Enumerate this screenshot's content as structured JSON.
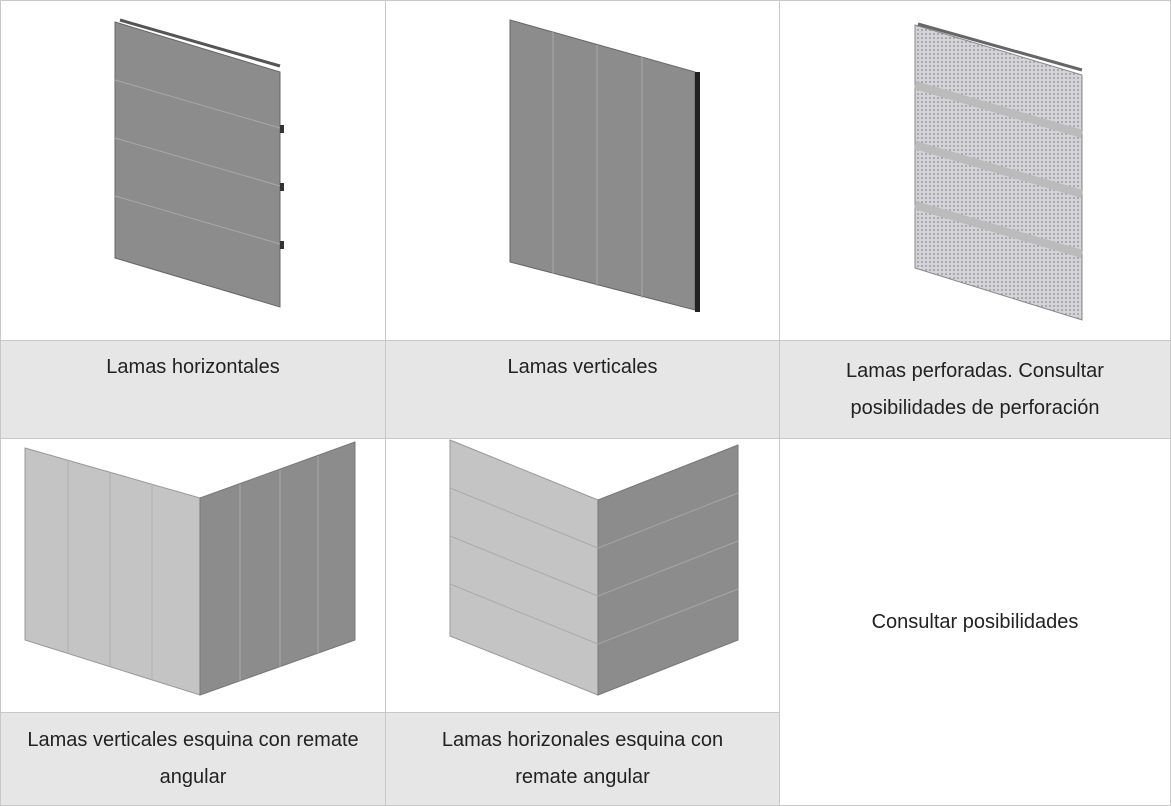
{
  "table": {
    "row1_captions": [
      "Lamas horizontales",
      "Lamas verticales",
      "Lamas perforadas. Consultar posibilidades de perforación"
    ],
    "row2_captions": [
      "Lamas verticales esquina con remate angular",
      "Lamas horizonales esquina con remate angular"
    ],
    "row2_note": "Consultar posibilidades"
  }
}
